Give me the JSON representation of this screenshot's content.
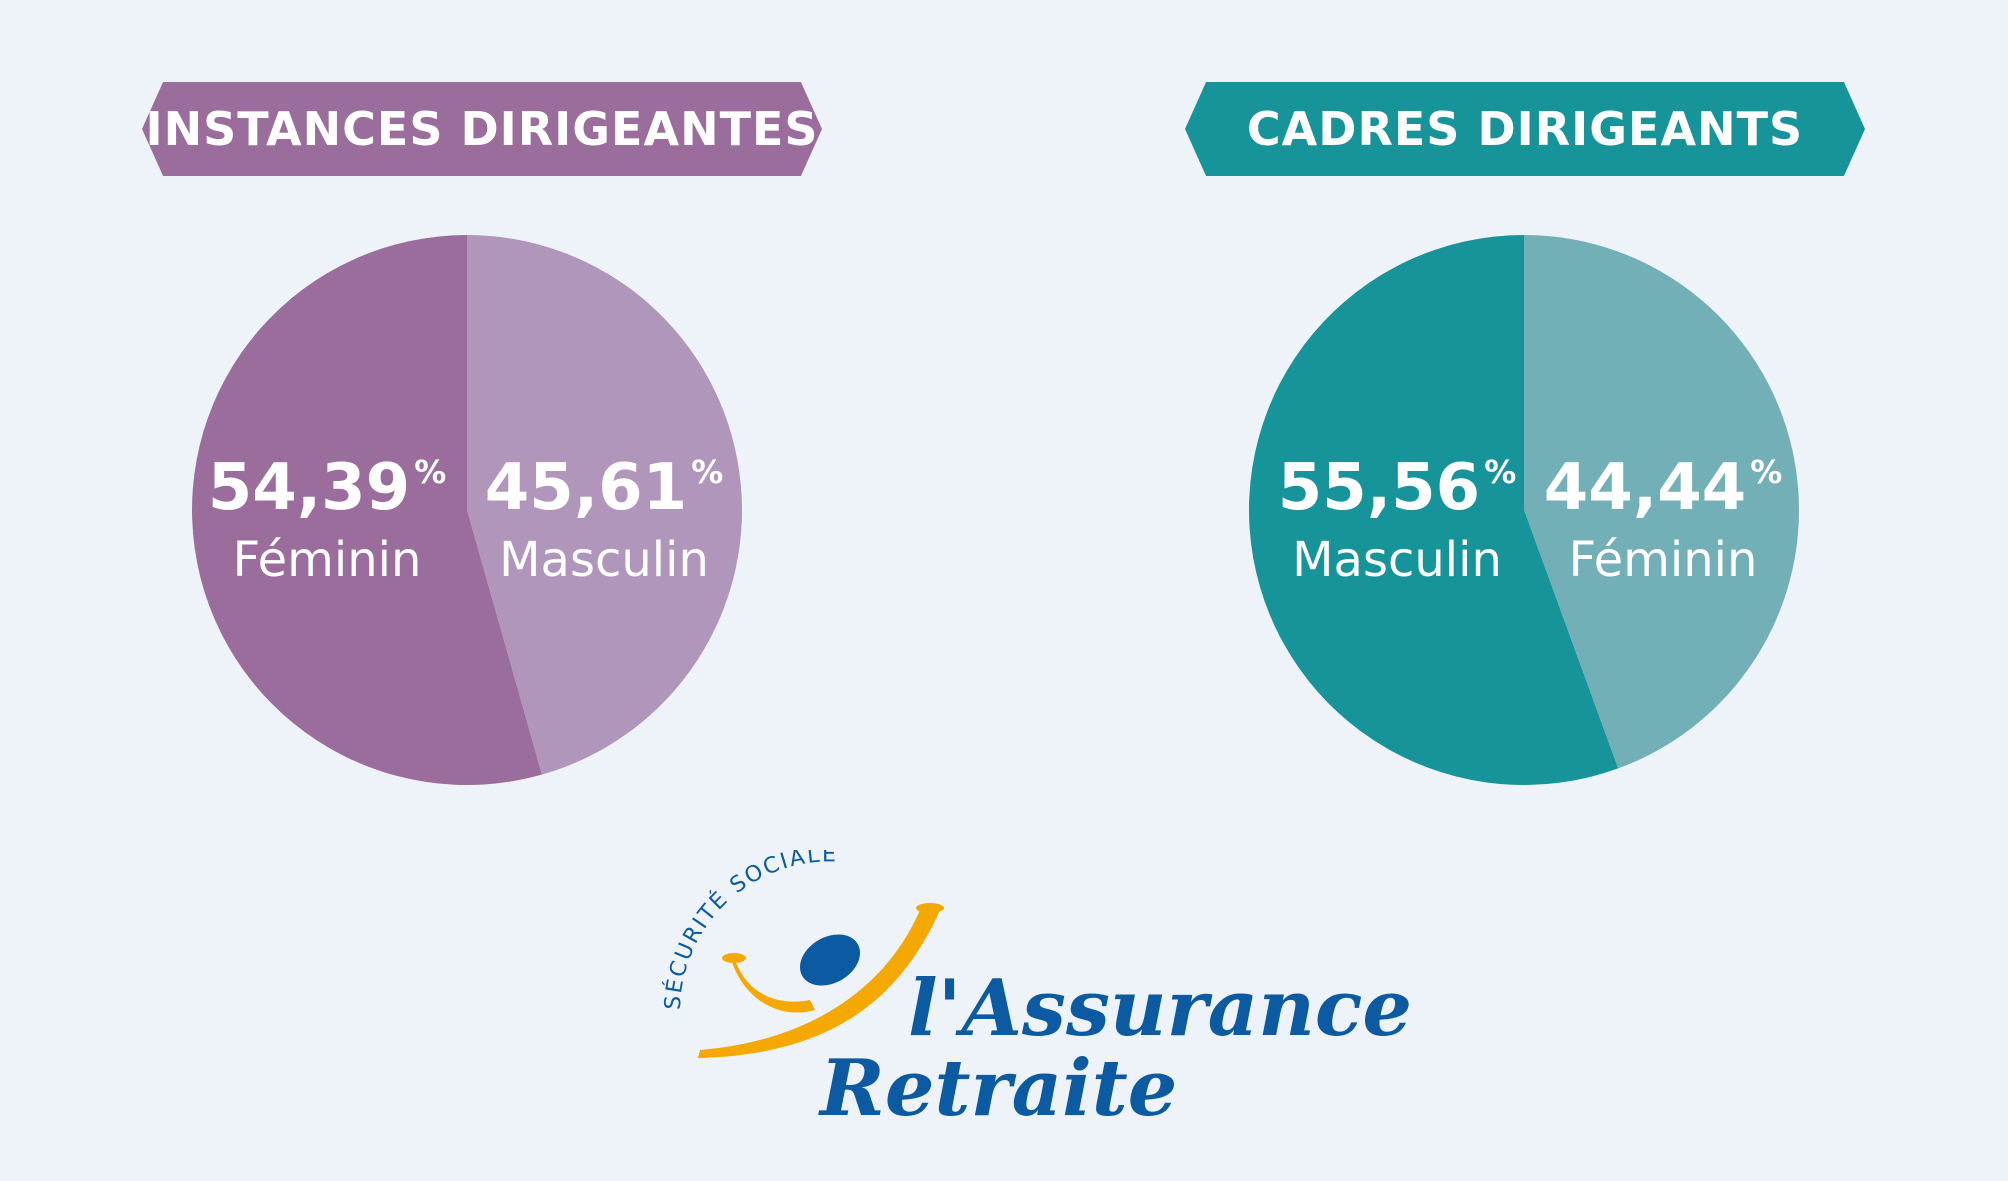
{
  "colors": {
    "background": "#eef3fa",
    "purple_dark": "#9a6d9c",
    "purple_light": "#b196bb",
    "teal_dark": "#17939a",
    "teal_light": "#73afb6",
    "logo_blue": "#0b5aa2",
    "logo_orange": "#f5a800"
  },
  "chart_data": [
    {
      "type": "pie",
      "title": "INSTANCES DIRIGEANTES",
      "slices": [
        {
          "label": "Masculin",
          "value": 45.61,
          "display": "45,61",
          "color": "#b196bb"
        },
        {
          "label": "Féminin",
          "value": 54.39,
          "display": "54,39",
          "color": "#9a6d9c"
        }
      ],
      "unit": "%"
    },
    {
      "type": "pie",
      "title": "CADRES DIRIGEANTS",
      "slices": [
        {
          "label": "Féminin",
          "value": 44.44,
          "display": "44,44",
          "color": "#73afb6"
        },
        {
          "label": "Masculin",
          "value": 55.56,
          "display": "55,56",
          "color": "#17939a"
        }
      ],
      "unit": "%"
    }
  ],
  "logo": {
    "arc_text": "SÉCURITÉ SOCIALE",
    "line1": "l'Assurance",
    "line2": "Retraite",
    "icon": "assurance-retraite-figure-icon"
  }
}
